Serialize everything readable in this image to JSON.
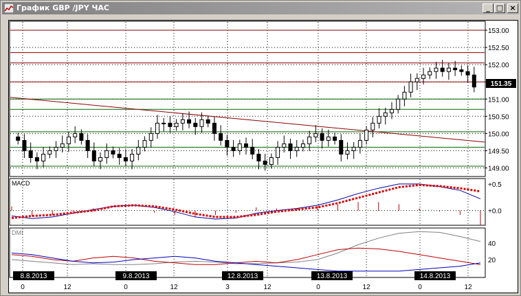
{
  "window": {
    "title": "График GBP /JPY ЧАС",
    "minimize_label": "_",
    "maximize_label": "□",
    "close_label": "×"
  },
  "price_panel": {
    "current_price": "151.35",
    "price_ticks": [
      "153.00",
      "152.50",
      "152.00",
      "151.50",
      "151.00",
      "150.50",
      "150.00",
      "149.50",
      "149.00"
    ]
  },
  "macd_panel": {
    "label": "MACD",
    "ticks": [
      "+0.5",
      "+0.0"
    ]
  },
  "dmi_panel": {
    "label": "DMI",
    "ticks": [
      "40",
      "20"
    ]
  },
  "time_axis": {
    "date_labels": [
      "8.8.2013",
      "9.8.2013",
      "12.8.2013",
      "13.8.2013",
      "14.8.2013"
    ],
    "hour_labels": [
      "0",
      "12",
      "0",
      "12",
      "3",
      "12",
      "0",
      "12",
      "0",
      "12"
    ]
  },
  "colors": {
    "bull_candle": "#000000",
    "bear_candle": "#000000",
    "resistance_line": "#8b0000",
    "support_line": "#006400",
    "trend_line": "#8b0000",
    "macd_line": "#0000a0",
    "macd_signal": "#e00000",
    "dmi_adx": "#808080",
    "dmi_plus": "#c00000",
    "dmi_minus": "#0000c0"
  },
  "chart_data": {
    "type": "candlestick",
    "interval": "1 hour",
    "symbol": "GBP/JPY",
    "ylim": [
      148.85,
      153.2
    ],
    "horizontal_levels": {
      "resistance": [
        153.0,
        152.35,
        152.05,
        151.5
      ],
      "support": [
        151.0,
        150.7,
        150.05,
        149.6,
        149.05
      ]
    },
    "close_series": [
      149.8,
      149.5,
      149.3,
      149.2,
      149.4,
      149.5,
      149.6,
      149.7,
      149.9,
      150.0,
      149.8,
      149.5,
      149.2,
      149.3,
      149.5,
      149.4,
      149.3,
      149.2,
      149.4,
      149.6,
      149.8,
      150.0,
      150.3,
      150.3,
      150.2,
      150.3,
      150.4,
      150.3,
      150.2,
      150.4,
      150.3,
      150.0,
      149.8,
      149.6,
      149.5,
      149.7,
      149.6,
      149.4,
      149.2,
      149.1,
      149.3,
      149.6,
      149.7,
      149.5,
      149.6,
      149.7,
      149.9,
      150.0,
      149.8,
      149.9,
      149.8,
      149.4,
      149.5,
      149.6,
      149.8,
      150.1,
      150.3,
      150.5,
      150.6,
      150.7,
      151.0,
      151.2,
      151.5,
      151.6,
      151.7,
      151.8,
      151.9,
      151.8,
      151.9,
      151.85,
      151.8,
      151.7,
      151.35
    ],
    "macd": {
      "range": [
        -0.25,
        0.55
      ],
      "line": [
        -0.1,
        -0.15,
        -0.12,
        -0.05,
        0.02,
        0.08,
        0.1,
        0.06,
        -0.02,
        -0.12,
        -0.16,
        -0.14,
        -0.05,
        0.0,
        0.04,
        0.1,
        0.2,
        0.32,
        0.42,
        0.5,
        0.5,
        0.45,
        0.38,
        0.22
      ],
      "signal": [
        -0.14,
        -0.1,
        -0.08,
        -0.04,
        0.0,
        0.08,
        0.1,
        0.08,
        0.02,
        -0.06,
        -0.12,
        -0.12,
        -0.08,
        -0.02,
        0.02,
        0.06,
        0.14,
        0.24,
        0.34,
        0.44,
        0.48,
        0.46,
        0.42,
        0.36
      ]
    },
    "dmi": {
      "range": [
        0,
        55
      ],
      "adx": [
        20,
        18,
        16,
        14,
        15,
        14,
        14,
        15,
        17,
        18,
        17,
        15,
        15,
        16,
        17,
        20,
        28,
        38,
        46,
        52,
        54,
        53,
        48,
        42
      ],
      "plus_di": [
        26,
        24,
        20,
        18,
        22,
        24,
        22,
        18,
        16,
        14,
        14,
        16,
        18,
        16,
        20,
        26,
        32,
        34,
        33,
        30,
        26,
        22,
        18,
        14
      ],
      "minus_di": [
        28,
        26,
        22,
        18,
        16,
        17,
        20,
        22,
        24,
        22,
        18,
        16,
        14,
        12,
        10,
        8,
        6,
        6,
        6,
        6,
        8,
        10,
        12,
        16
      ]
    }
  }
}
